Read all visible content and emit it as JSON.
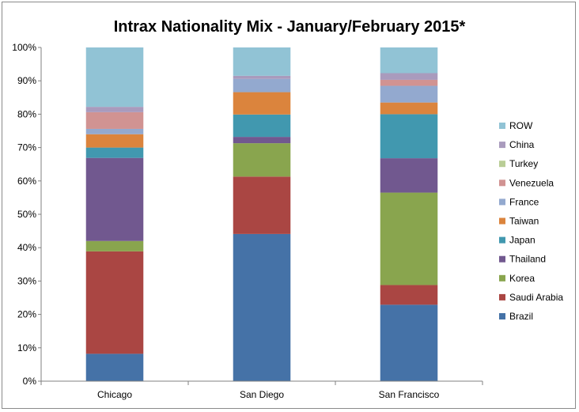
{
  "chart_data": {
    "type": "bar",
    "stacked": true,
    "title": "Intrax Nationality Mix - January/February 2015*",
    "xlabel": "",
    "ylabel": "",
    "ylim": [
      0,
      100
    ],
    "y_ticks": [
      "0%",
      "10%",
      "20%",
      "30%",
      "40%",
      "50%",
      "60%",
      "70%",
      "80%",
      "90%",
      "100%"
    ],
    "grid": false,
    "legend_position": "right",
    "categories": [
      "Chicago",
      "San Diego",
      "San Francisco"
    ],
    "series": [
      {
        "name": "Brazil",
        "color": "#4572A7",
        "values": [
          8.2,
          44.1,
          22.9
        ]
      },
      {
        "name": "Saudi Arabia",
        "color": "#AA4643",
        "values": [
          30.7,
          17.2,
          5.9
        ]
      },
      {
        "name": "Korea",
        "color": "#89A54E",
        "values": [
          3.1,
          10.0,
          27.7
        ]
      },
      {
        "name": "Thailand",
        "color": "#71588F",
        "values": [
          24.9,
          1.9,
          10.3
        ]
      },
      {
        "name": "Japan",
        "color": "#4198AF",
        "values": [
          3.1,
          6.7,
          13.2
        ]
      },
      {
        "name": "Taiwan",
        "color": "#DB843D",
        "values": [
          4.0,
          6.7,
          3.5
        ]
      },
      {
        "name": "France",
        "color": "#93A9CF",
        "values": [
          1.6,
          4.0,
          5.0
        ]
      },
      {
        "name": "Venezuela",
        "color": "#D19392",
        "values": [
          5.0,
          0.0,
          1.8
        ]
      },
      {
        "name": "Turkey",
        "color": "#B9CD96",
        "values": [
          0.0,
          0.0,
          0.0
        ]
      },
      {
        "name": "China",
        "color": "#A99BBD",
        "values": [
          1.6,
          0.9,
          2.0
        ]
      },
      {
        "name": "ROW",
        "color": "#91C3D5",
        "values": [
          17.8,
          8.5,
          7.7
        ]
      }
    ]
  }
}
